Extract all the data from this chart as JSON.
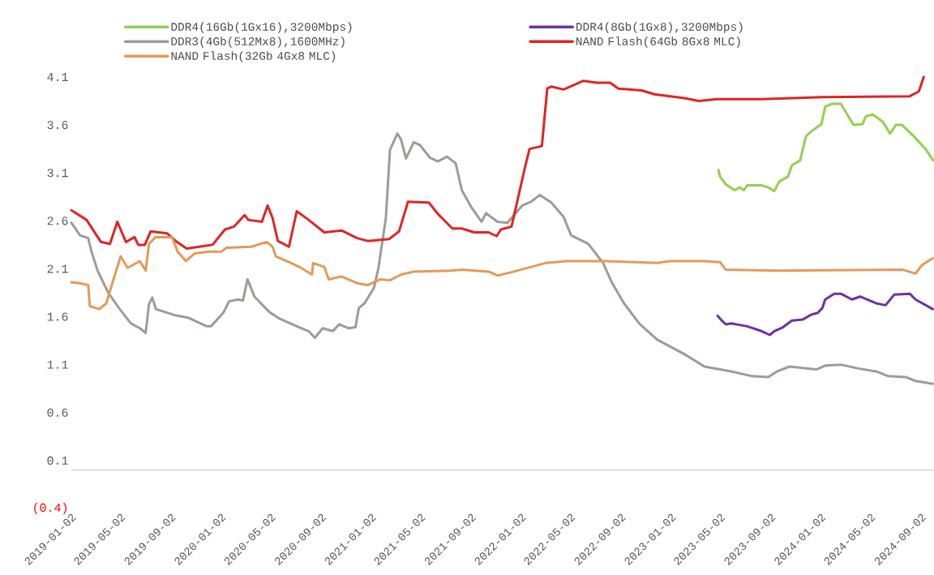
{
  "chart_data": {
    "type": "line",
    "xlim": [
      "2019-01-02",
      "2024-10-03"
    ],
    "xticks": [
      "2019-01-02",
      "2019-05-02",
      "2019-09-02",
      "2020-01-02",
      "2020-05-02",
      "2020-09-02",
      "2021-01-02",
      "2021-05-02",
      "2021-09-02",
      "2022-01-02",
      "2022-05-02",
      "2022-09-02",
      "2023-01-02",
      "2023-05-02",
      "2023-09-02",
      "2024-01-02",
      "2024-05-02",
      "2024-09-02"
    ],
    "ylim": [
      -0.4,
      4.1
    ],
    "yticks": [
      {
        "value": -0.4,
        "label": "(0.4)"
      },
      0.1,
      0.6,
      1.1,
      1.6,
      2.1,
      2.6,
      3.1,
      3.6,
      4.1
    ],
    "legend": "top",
    "marker": "none",
    "line_style": "solid",
    "series": [
      {
        "name": "DDR4(16Gb(1Gx16),3200Mbps)",
        "color": "#92d050",
        "x": [
          "2023-04-27",
          "2023-05-01",
          "2023-05-15",
          "2023-06-06",
          "2023-06-18",
          "2023-06-28",
          "2023-07-06",
          "2023-08-10",
          "2023-08-26",
          "2023-09-10",
          "2023-09-22",
          "2023-10-13",
          "2023-10-23",
          "2023-11-12",
          "2023-11-26",
          "2023-12-08",
          "2024-01-03",
          "2024-01-12",
          "2024-01-28",
          "2024-02-19",
          "2024-03-21",
          "2024-04-12",
          "2024-04-20",
          "2024-05-07",
          "2024-06-01",
          "2024-06-18",
          "2024-07-02",
          "2024-07-17",
          "2024-08-13",
          "2024-09-14",
          "2024-10-01"
        ],
        "values": [
          3.13,
          3.06,
          2.98,
          2.92,
          2.95,
          2.92,
          2.97,
          2.97,
          2.95,
          2.91,
          3.01,
          3.06,
          3.18,
          3.23,
          3.48,
          3.53,
          3.61,
          3.79,
          3.82,
          3.82,
          3.6,
          3.61,
          3.69,
          3.71,
          3.63,
          3.51,
          3.6,
          3.6,
          3.49,
          3.34,
          3.23
        ]
      },
      {
        "name": "DDR4(8Gb(1Gx8),3200Mbps)",
        "color": "#7030a0",
        "x": [
          "2023-04-25",
          "2023-05-03",
          "2023-05-15",
          "2023-05-28",
          "2023-07-06",
          "2023-08-10",
          "2023-08-30",
          "2023-09-10",
          "2023-10-01",
          "2023-10-23",
          "2023-11-18",
          "2023-12-08",
          "2023-12-25",
          "2024-01-05",
          "2024-01-12",
          "2024-02-03",
          "2024-02-19",
          "2024-03-17",
          "2024-04-06",
          "2024-05-15",
          "2024-06-07",
          "2024-06-28",
          "2024-08-05",
          "2024-08-19",
          "2024-09-30"
        ],
        "values": [
          1.61,
          1.57,
          1.52,
          1.53,
          1.5,
          1.45,
          1.41,
          1.45,
          1.49,
          1.56,
          1.57,
          1.62,
          1.64,
          1.69,
          1.78,
          1.84,
          1.84,
          1.78,
          1.81,
          1.74,
          1.72,
          1.83,
          1.84,
          1.78,
          1.68
        ]
      },
      {
        "name": "DDR3(4Gb(512Mx8),1600MHz)",
        "color": "#a09a98",
        "x": [
          "2019-01-02",
          "2019-01-23",
          "2019-02-12",
          "2019-02-20",
          "2019-03-07",
          "2019-04-02",
          "2019-04-28",
          "2019-05-27",
          "2019-06-18",
          "2019-07-02",
          "2019-07-10",
          "2019-07-18",
          "2019-07-27",
          "2019-09-08",
          "2019-10-13",
          "2019-11-28",
          "2019-12-08",
          "2020-01-07",
          "2020-01-21",
          "2020-02-12",
          "2020-02-24",
          "2020-03-06",
          "2020-03-23",
          "2020-04-28",
          "2020-05-23",
          "2020-07-10",
          "2020-08-02",
          "2020-08-17",
          "2020-09-05",
          "2020-09-30",
          "2020-10-15",
          "2020-11-07",
          "2020-11-24",
          "2020-12-02",
          "2020-12-16",
          "2021-01-08",
          "2021-01-19",
          "2021-02-06",
          "2021-02-16",
          "2021-03-06",
          "2021-03-15",
          "2021-03-27",
          "2021-04-15",
          "2021-04-30",
          "2021-05-24",
          "2021-06-13",
          "2021-07-05",
          "2021-07-26",
          "2021-08-10",
          "2021-09-01",
          "2021-09-27",
          "2021-10-08",
          "2021-11-05",
          "2021-11-29",
          "2022-01-04",
          "2022-01-26",
          "2022-02-16",
          "2022-03-16",
          "2022-04-15",
          "2022-05-03",
          "2022-06-14",
          "2022-07-11",
          "2022-07-19",
          "2022-08-10",
          "2022-09-09",
          "2022-10-16",
          "2022-11-29",
          "2023-02-03",
          "2023-03-24",
          "2023-05-28",
          "2023-07-19",
          "2023-08-26",
          "2023-09-17",
          "2023-10-17",
          "2023-12-21",
          "2024-01-12",
          "2024-02-19",
          "2024-04-02",
          "2024-05-15",
          "2024-06-14",
          "2024-07-27",
          "2024-08-19",
          "2024-09-30"
        ],
        "values": [
          2.58,
          2.45,
          2.42,
          2.28,
          2.08,
          1.85,
          1.69,
          1.53,
          1.48,
          1.43,
          1.73,
          1.8,
          1.68,
          1.62,
          1.59,
          1.5,
          1.5,
          1.64,
          1.76,
          1.78,
          1.77,
          1.99,
          1.81,
          1.65,
          1.58,
          1.49,
          1.45,
          1.38,
          1.48,
          1.45,
          1.52,
          1.48,
          1.49,
          1.69,
          1.74,
          1.9,
          2.11,
          2.63,
          3.34,
          3.51,
          3.45,
          3.25,
          3.42,
          3.39,
          3.26,
          3.22,
          3.27,
          3.2,
          2.92,
          2.75,
          2.59,
          2.68,
          2.59,
          2.58,
          2.76,
          2.8,
          2.87,
          2.79,
          2.64,
          2.45,
          2.36,
          2.21,
          2.17,
          1.96,
          1.74,
          1.53,
          1.36,
          1.21,
          1.08,
          1.03,
          0.98,
          0.97,
          1.03,
          1.08,
          1.05,
          1.09,
          1.1,
          1.06,
          1.03,
          0.98,
          0.97,
          0.93,
          0.9
        ]
      },
      {
        "name": "NAND Flash(64Gb 8Gx8 MLC)",
        "color": "#e02424",
        "x": [
          "2019-01-02",
          "2019-02-08",
          "2019-03-15",
          "2019-04-06",
          "2019-04-24",
          "2019-05-15",
          "2019-06-05",
          "2019-06-14",
          "2019-06-30",
          "2019-07-14",
          "2019-08-23",
          "2019-09-16",
          "2019-10-10",
          "2019-11-09",
          "2019-12-12",
          "2020-01-11",
          "2020-02-02",
          "2020-02-28",
          "2020-03-08",
          "2020-04-10",
          "2020-04-24",
          "2020-05-06",
          "2020-05-19",
          "2020-06-15",
          "2020-07-04",
          "2020-08-02",
          "2020-09-09",
          "2020-10-21",
          "2020-11-28",
          "2020-12-24",
          "2021-02-14",
          "2021-03-10",
          "2021-04-01",
          "2021-05-22",
          "2021-06-13",
          "2021-07-18",
          "2021-08-10",
          "2021-09-09",
          "2021-10-14",
          "2021-11-03",
          "2021-11-13",
          "2021-12-09",
          "2021-12-26",
          "2022-01-12",
          "2022-01-22",
          "2022-02-21",
          "2022-03-06",
          "2022-03-16",
          "2022-04-15",
          "2022-06-02",
          "2022-07-05",
          "2022-08-06",
          "2022-08-26",
          "2022-10-22",
          "2022-11-22",
          "2023-02-03",
          "2023-03-10",
          "2023-04-23",
          "2023-08-10",
          "2024-01-05",
          "2024-08-05",
          "2024-08-27",
          "2024-09-08"
        ],
        "values": [
          2.71,
          2.61,
          2.38,
          2.36,
          2.59,
          2.38,
          2.43,
          2.35,
          2.35,
          2.49,
          2.47,
          2.38,
          2.31,
          2.33,
          2.35,
          2.51,
          2.54,
          2.66,
          2.61,
          2.59,
          2.76,
          2.63,
          2.39,
          2.33,
          2.7,
          2.61,
          2.48,
          2.5,
          2.42,
          2.39,
          2.41,
          2.49,
          2.8,
          2.79,
          2.67,
          2.52,
          2.52,
          2.48,
          2.48,
          2.44,
          2.51,
          2.54,
          2.86,
          3.18,
          3.35,
          3.38,
          3.98,
          4.0,
          3.97,
          4.06,
          4.04,
          4.04,
          3.98,
          3.96,
          3.92,
          3.88,
          3.85,
          3.87,
          3.87,
          3.89,
          3.9,
          3.95,
          4.1
        ]
      },
      {
        "name": "NAND Flash(32Gb 4Gx8 MLC)",
        "color": "#e49a58",
        "x": [
          "2019-01-02",
          "2019-01-23",
          "2019-02-12",
          "2019-02-16",
          "2019-03-11",
          "2019-03-28",
          "2019-04-14",
          "2019-05-02",
          "2019-05-19",
          "2019-06-18",
          "2019-07-02",
          "2019-07-10",
          "2019-07-26",
          "2019-08-13",
          "2019-09-04",
          "2019-09-18",
          "2019-10-08",
          "2019-10-29",
          "2019-12-04",
          "2020-01-03",
          "2020-01-15",
          "2020-03-15",
          "2020-04-22",
          "2020-05-06",
          "2020-05-14",
          "2020-06-15",
          "2020-07-10",
          "2020-08-10",
          "2020-08-13",
          "2020-09-09",
          "2020-09-20",
          "2020-10-21",
          "2020-11-28",
          "2020-12-24",
          "2021-01-23",
          "2021-02-16",
          "2021-03-15",
          "2021-04-15",
          "2021-07-13",
          "2021-08-10",
          "2021-10-14",
          "2021-11-05",
          "2021-12-05",
          "2022-03-02",
          "2022-04-23",
          "2022-07-27",
          "2022-11-29",
          "2022-12-29",
          "2023-03-24",
          "2023-05-01",
          "2023-05-15",
          "2023-09-17",
          "2024-07-19",
          "2024-08-19",
          "2024-09-04",
          "2024-09-30"
        ],
        "values": [
          1.96,
          1.95,
          1.93,
          1.71,
          1.68,
          1.74,
          1.98,
          2.23,
          2.11,
          2.18,
          2.08,
          2.36,
          2.43,
          2.43,
          2.43,
          2.28,
          2.18,
          2.26,
          2.28,
          2.28,
          2.32,
          2.33,
          2.38,
          2.33,
          2.23,
          2.17,
          2.12,
          2.04,
          2.16,
          2.12,
          1.99,
          2.02,
          1.95,
          1.93,
          1.99,
          1.98,
          2.04,
          2.07,
          2.08,
          2.09,
          2.07,
          2.03,
          2.06,
          2.16,
          2.18,
          2.18,
          2.16,
          2.18,
          2.18,
          2.17,
          2.09,
          2.08,
          2.09,
          2.05,
          2.14,
          2.21
        ]
      }
    ]
  }
}
